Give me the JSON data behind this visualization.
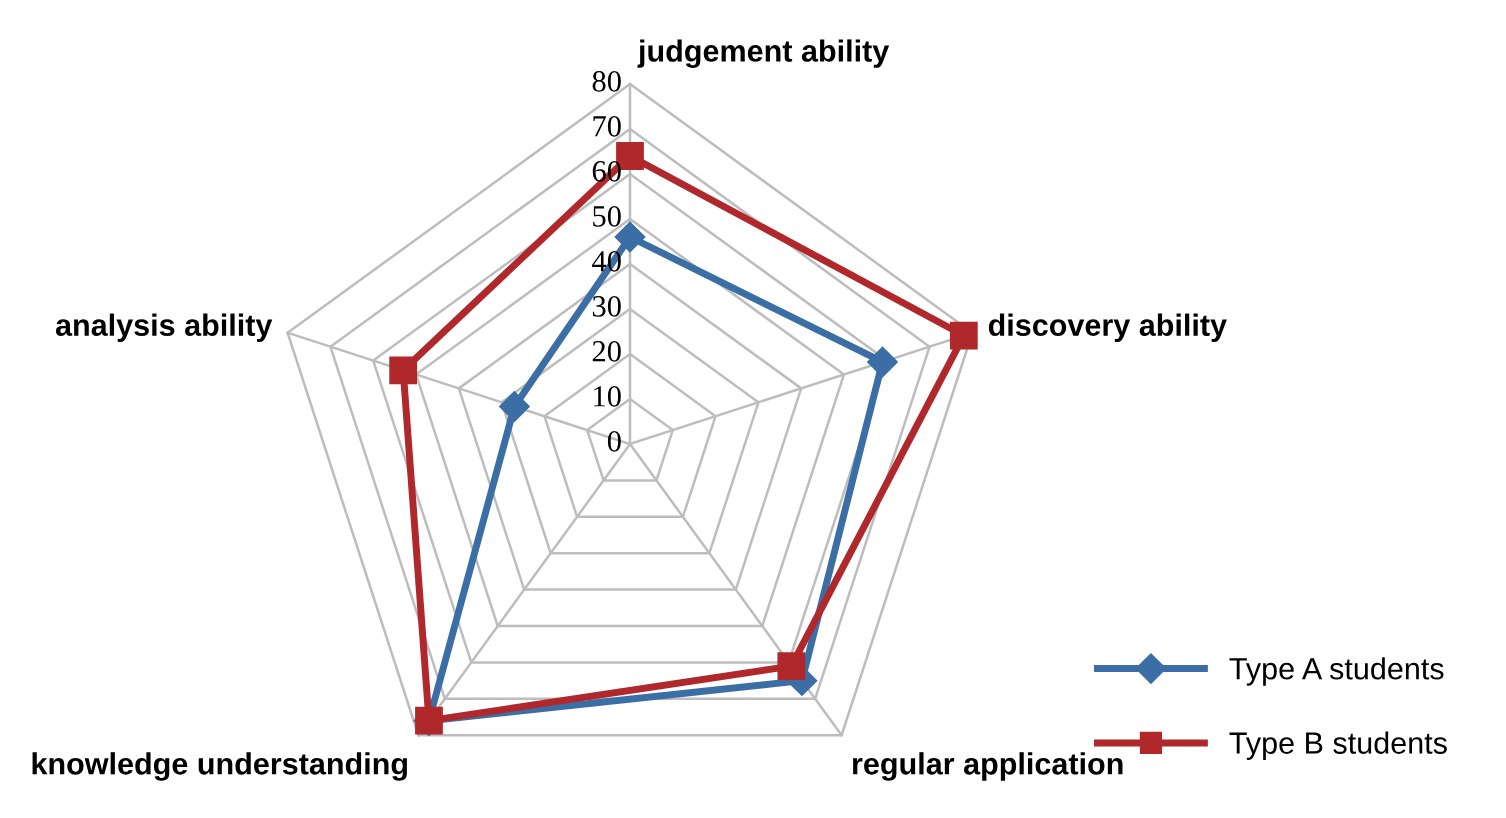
{
  "chart_data": {
    "type": "radar",
    "categories": [
      "judgement ability",
      "discovery ability",
      "regular application",
      "knowledge understanding",
      "analysis ability"
    ],
    "ylim": [
      0,
      80
    ],
    "yticks": [
      0,
      10,
      20,
      30,
      40,
      50,
      60,
      70,
      80
    ],
    "grid": true,
    "legend": "bottom right",
    "series": [
      {
        "name": "Type A students",
        "color": "#3b6ea5",
        "marker": "diamond",
        "values": [
          46,
          59,
          65,
          76,
          27
        ]
      },
      {
        "name": "Type B students",
        "color": "#b0282b",
        "marker": "square",
        "values": [
          64,
          78,
          61,
          76,
          53
        ]
      }
    ]
  }
}
